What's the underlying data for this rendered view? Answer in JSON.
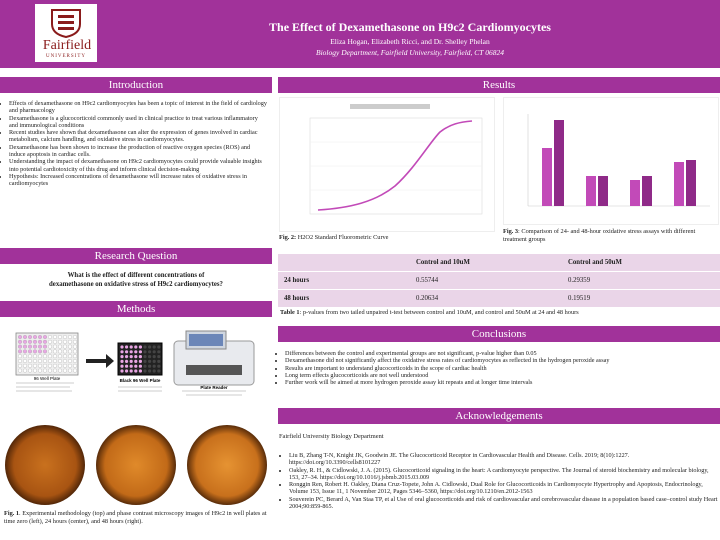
{
  "header": {
    "title": "The Effect of Dexamethasone on H9c2 Cardiomyocytes",
    "authors": "Eliza Hogan, Elizabeth Ricci, and Dr. Shelley Phelan",
    "department": "Biology Department, Fairfield University, Fairfield, CT 06824",
    "logo_text": "Fairfield",
    "logo_sub": "UNIVERSITY"
  },
  "colors": {
    "accent": "#a1329a",
    "table_bg": "#ead5e8",
    "chart_line": "#c24ab8"
  },
  "intro": {
    "heading": "Introduction",
    "bullets": [
      "Effects of dexamethasone on H9c2 cardiomyocytes has been a  topic of  interest in the field of cardiology and pharmacology",
      "Dexamethasone is a glucocorticoid commonly used in clinical  practice to treat various inflammatory and immunological conditions",
      "Recent studies have shown that dexamethasone can alter the expression of genes involved in cardiac metabolism, calcium  handling, and oxidative stress in cardiomyocytes.",
      "Dexamethasone has been shown to increase the production of  reactive oxygen species (ROS) and induce apoptosis in cardiac cells.",
      "Understanding the impact of dexamethasone on H9c2 cardiomyocytes could provide valuable insights into potential  cardiotoxicity of this drug and inform clinical decision-making",
      "Hypothesis: Increased concentrations of dexamethasone will increase rates of oxidative stress in cardiomyocytes"
    ]
  },
  "research": {
    "heading": "Research Question",
    "question_line1": "What is the effect of different concentrations of",
    "question_line2": "dexamethasone on oxidative stress of H9c2 cardiomyocytes?"
  },
  "methods": {
    "heading": "Methods",
    "plate_label": "96 Well Plate",
    "black_plate_label": "Black 96 Well Plate",
    "reader_label": "Plate Reader",
    "caption_bold": "Fig. 1",
    "caption": ". Experimental methodology (top) and phase contrast microscopy images of H9c2 in well plates at time zero (left), 24 hours (center), and 48 hours (right)."
  },
  "results": {
    "heading": "Results",
    "fig2_bold": "Fig. 2:",
    "fig2": " H2O2 Standard Fluorometric Curve",
    "fig3_bold": "Fig. 3",
    "fig3": ": Comparison of 24- and 48-hour oxidative stress assays with different treatment groups",
    "table_headers": [
      "",
      "Control and 10uM",
      "Control and 50uM"
    ],
    "table_rows": [
      [
        "24 hours",
        "0.55744",
        "0.29359"
      ],
      [
        "48 hours",
        "0.20634",
        "0.19519"
      ]
    ],
    "table_caption_bold": "Table 1",
    "table_caption": ": p-values from two tailed unpaired t-test between control and 10uM, and control and 50uM at 24 and 48 hours"
  },
  "conclusions": {
    "heading": "Conclusions",
    "bullets": [
      "Differences between the control and experimental groups are not significant, p-value higher than 0.05",
      "Dexamethasone did not significantly affect the oxidative stress rates of cardiomyocytes as reflected in the hydrogen peroxide assay",
      "Results are important to understand glucocorticoids in the scope of cardiac health",
      "Long term effects glucocorticoids are not well understood",
      "Further work will be aimed at more hydrogen peroxide assay kit repeats and at longer time intervals"
    ]
  },
  "ack": {
    "heading": "Acknowledgements",
    "org": "Fairfield University Biology Department",
    "refs": [
      "Liu B, Zhang T-N, Knight JK, Goodwin JE. The Glucocorticoid Receptor in Cardiovascular Health and Disease. Cells. 2019; 8(10):1227. https://doi.org/10.3390/cells8101227",
      "Oakley, R. H., & Cidlowski, J. A. (2015). Glucocorticoid signaling in the heart: A cardiomyocyte perspective. The Journal of steroid biochemistry and molecular biology, 153, 27–34. https://doi.org/10.1016/j.jsbmb.2015.03.009",
      "Ronggin Ren, Robert H. Oakley, Diana Cruz-Topete, John A. Cidlowski, Dual Role for Glucocorticoids in Cardiomyocyte Hypertrophy and Apoptosis, Endocrinology, Volume 153, Issue 11, 1 November 2012, Pages 5346–5360, https://doi.org/10.1210/en.2012-1563",
      "Souverein PC, Berard A, Van Staa TP, et al Use of oral glucocorticoids and risk of cardiovascular and cerebrovascular disease in a population based case–control study Heart 2004;90:859-865."
    ]
  }
}
